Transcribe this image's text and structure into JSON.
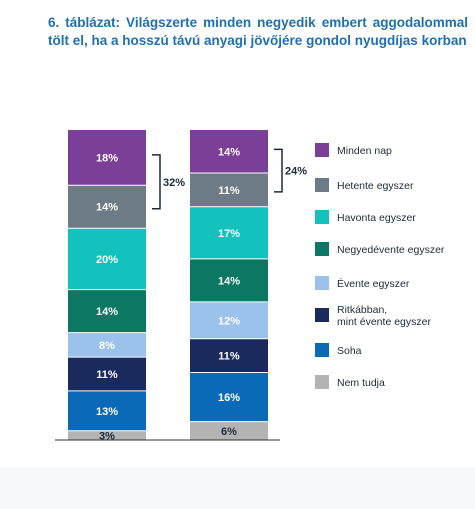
{
  "title": "6. táblázat: Világszerte minden negyedik embert aggodalommal tölt el, ha a hosszú távú anyagi jövőjére gondol nyugdíjas korban",
  "chart_data": {
    "type": "bar",
    "stacked": true,
    "ylim": [
      0,
      100
    ],
    "categories": [
      "",
      ""
    ],
    "series": [
      {
        "name": "Minden nap",
        "color": "#7b3f98",
        "values": [
          18,
          14
        ]
      },
      {
        "name": "Hetente egyszer",
        "color": "#6d7b87",
        "values": [
          14,
          11
        ]
      },
      {
        "name": "Havonta egyszer",
        "color": "#13c2bc",
        "values": [
          20,
          17
        ]
      },
      {
        "name": "Negyedévente egyszer",
        "color": "#0c7864",
        "values": [
          14,
          14
        ]
      },
      {
        "name": "Évente egyszer",
        "color": "#9ac2ea",
        "values": [
          8,
          12
        ]
      },
      {
        "name": "Ritkábban,\nmint évente egyszer",
        "color": "#1a2a5c",
        "values": [
          11,
          11
        ]
      },
      {
        "name": "Soha",
        "color": "#0a6ab8",
        "values": [
          13,
          16
        ]
      },
      {
        "name": "Nem tudja",
        "color": "#b3b3b3",
        "values": [
          3,
          6
        ]
      }
    ],
    "brackets": [
      {
        "bar": 0,
        "label": "32%"
      },
      {
        "bar": 1,
        "label": "24%"
      }
    ],
    "legend_position": "right"
  }
}
